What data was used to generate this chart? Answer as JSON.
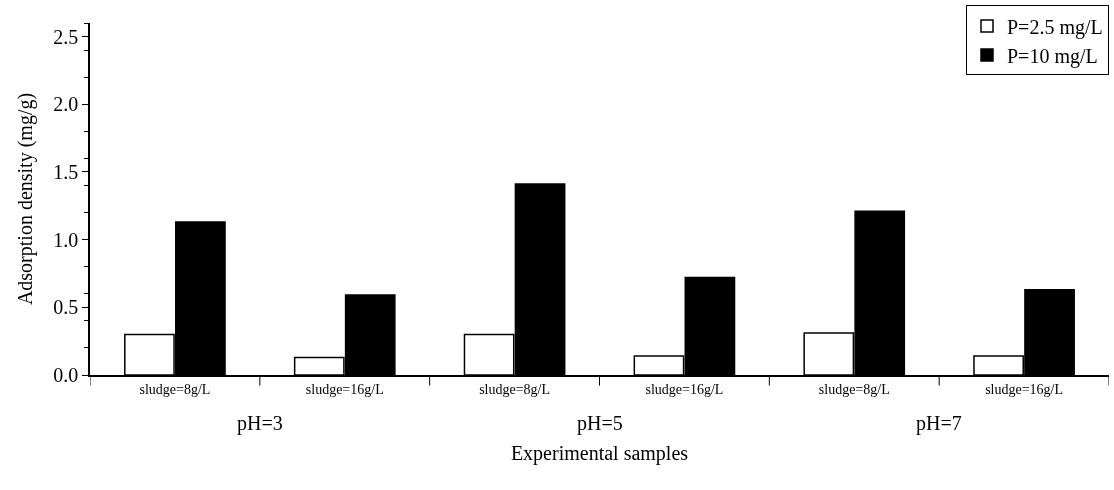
{
  "chart_data": {
    "type": "bar",
    "xlabel": "Experimental samples",
    "ylabel": "Adsorption density (mg/g)",
    "categories": [
      "sludge=8g/L",
      "sludge=16g/L",
      "sludge=8g/L",
      "sludge=16g/L",
      "sludge=8g/L",
      "sludge=16g/L"
    ],
    "series": [
      {
        "name": "P=2.5 mg/L",
        "color": "#ffffff",
        "values": [
          0.3,
          0.13,
          0.3,
          0.14,
          0.31,
          0.14
        ]
      },
      {
        "name": "P=10 mg/L",
        "color": "#000000",
        "values": [
          1.13,
          0.59,
          1.41,
          0.72,
          1.21,
          0.63
        ]
      }
    ],
    "annotations": [
      "pH=3",
      "pH=5",
      "pH=7"
    ],
    "ylim": [
      0,
      2.6
    ],
    "yticks": [
      {
        "value": 0,
        "label": "0.0"
      },
      {
        "value": 0.5,
        "label": "0.5"
      },
      {
        "value": 1,
        "label": "1.0"
      },
      {
        "value": 1.5,
        "label": "1.5"
      },
      {
        "value": 2,
        "label": "2.0"
      },
      {
        "value": 2.5,
        "label": "2.5"
      }
    ],
    "legend": "top right"
  }
}
